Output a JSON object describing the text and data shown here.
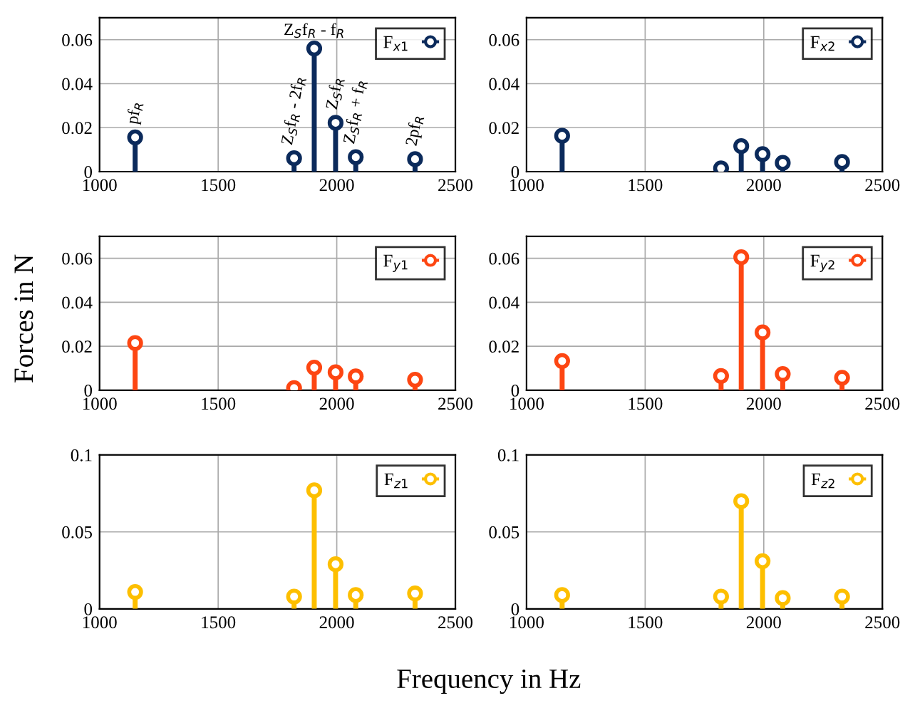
{
  "chart_data": [
    {
      "type": "lollipop",
      "x": [
        1150,
        1820,
        1905,
        1995,
        2080,
        2330
      ],
      "series": [
        {
          "name": "F$_{x1}$",
          "color": "#0b2a5b",
          "values": [
            0.0156,
            0.0061,
            0.056,
            0.0222,
            0.0066,
            0.0057
          ]
        }
      ],
      "xlim": [
        1000,
        2500
      ],
      "xticks": [
        1000,
        1500,
        2000,
        2500
      ],
      "ylim": [
        0,
        0.07
      ],
      "yticks": [
        0,
        0.02,
        0.04,
        0.06
      ],
      "grid": true,
      "legend": "top right",
      "marker": "circle",
      "annotations": [
        {
          "text": "pf$_{R}$",
          "x": 1150,
          "y": 0.0156
        },
        {
          "text": "Z$_{S}$f$_{R}$ - 2f$_{R}$",
          "x": 1820,
          "y": 0.0061
        },
        {
          "text": "Z$_{S}$f$_{R}$ - f$_{R}$",
          "x": 1905,
          "y": 0.056
        },
        {
          "text": "Z$_{S}$f$_{R}$",
          "x": 1995,
          "y": 0.0222
        },
        {
          "text": "Z$_{S}$f$_{R}$ + f$_{R}$",
          "x": 2080,
          "y": 0.0066
        },
        {
          "text": "2pf$_{R}$",
          "x": 2330,
          "y": 0.0057
        }
      ]
    },
    {
      "type": "lollipop",
      "x": [
        1150,
        1820,
        1905,
        1995,
        2080,
        2330
      ],
      "series": [
        {
          "name": "F$_{x2}$",
          "color": "#0b2a5b",
          "values": [
            0.0163,
            0.0015,
            0.0116,
            0.008,
            0.004,
            0.0044
          ]
        }
      ],
      "xlim": [
        1000,
        2500
      ],
      "xticks": [
        1000,
        1500,
        2000,
        2500
      ],
      "ylim": [
        0,
        0.07
      ],
      "yticks": [
        0,
        0.02,
        0.04,
        0.06
      ],
      "grid": true,
      "legend": "top right",
      "marker": "circle"
    },
    {
      "type": "lollipop",
      "x": [
        1150,
        1820,
        1905,
        1995,
        2080,
        2330
      ],
      "series": [
        {
          "name": "F$_{y1}$",
          "color": "#fd4612",
          "values": [
            0.0215,
            0.001,
            0.0103,
            0.0082,
            0.0063,
            0.0048
          ]
        }
      ],
      "xlim": [
        1000,
        2500
      ],
      "xticks": [
        1000,
        1500,
        2000,
        2500
      ],
      "ylim": [
        0,
        0.07
      ],
      "yticks": [
        0,
        0.02,
        0.04,
        0.06
      ],
      "grid": true,
      "legend": "top right",
      "marker": "circle",
      "ylabel": "Forces in N"
    },
    {
      "type": "lollipop",
      "x": [
        1150,
        1820,
        1905,
        1995,
        2080,
        2330
      ],
      "series": [
        {
          "name": "F$_{y2}$",
          "color": "#fd4612",
          "values": [
            0.0133,
            0.0065,
            0.0605,
            0.0263,
            0.0074,
            0.0057
          ]
        }
      ],
      "xlim": [
        1000,
        2500
      ],
      "xticks": [
        1000,
        1500,
        2000,
        2500
      ],
      "ylim": [
        0,
        0.07
      ],
      "yticks": [
        0,
        0.02,
        0.04,
        0.06
      ],
      "grid": true,
      "legend": "top right",
      "marker": "circle"
    },
    {
      "type": "lollipop",
      "x": [
        1150,
        1820,
        1905,
        1995,
        2080,
        2330
      ],
      "series": [
        {
          "name": "F$_{z1}$",
          "color": "#fdbf00",
          "values": [
            0.011,
            0.008,
            0.077,
            0.029,
            0.009,
            0.01
          ]
        }
      ],
      "xlim": [
        1000,
        2500
      ],
      "xticks": [
        1000,
        1500,
        2000,
        2500
      ],
      "ylim": [
        0,
        0.1
      ],
      "yticks": [
        0,
        0.05,
        0.1
      ],
      "grid": true,
      "legend": "top right",
      "marker": "circle",
      "xlabel": "Frequency in Hz"
    },
    {
      "type": "lollipop",
      "x": [
        1150,
        1820,
        1905,
        1995,
        2080,
        2330
      ],
      "series": [
        {
          "name": "F$_{z2}$",
          "color": "#fdbf00",
          "values": [
            0.009,
            0.008,
            0.07,
            0.031,
            0.007,
            0.008
          ]
        }
      ],
      "xlim": [
        1000,
        2500
      ],
      "xticks": [
        1000,
        1500,
        2000,
        2500
      ],
      "ylim": [
        0,
        0.1
      ],
      "yticks": [
        0,
        0.05,
        0.1
      ],
      "grid": true,
      "legend": "top right",
      "marker": "circle"
    }
  ]
}
